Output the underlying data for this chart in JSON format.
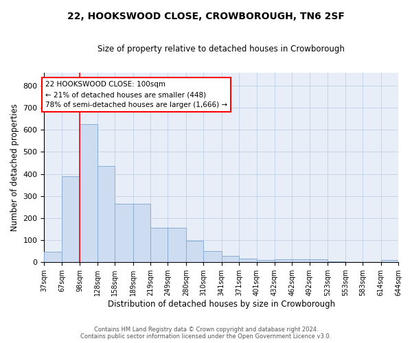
{
  "title": "22, HOOKSWOOD CLOSE, CROWBOROUGH, TN6 2SF",
  "subtitle": "Size of property relative to detached houses in Crowborough",
  "xlabel": "Distribution of detached houses by size in Crowborough",
  "ylabel": "Number of detached properties",
  "bar_edges": [
    37,
    67,
    98,
    128,
    158,
    189,
    219,
    249,
    280,
    310,
    341,
    371,
    401,
    432,
    462,
    492,
    523,
    553,
    583,
    614,
    644
  ],
  "bar_heights": [
    48,
    388,
    627,
    437,
    265,
    265,
    155,
    155,
    97,
    52,
    30,
    17,
    11,
    12,
    12,
    12,
    5,
    0,
    0,
    10,
    0
  ],
  "bar_color": "#cddcf0",
  "bar_edge_color": "#8aadd4",
  "grid_color": "#c0cfe8",
  "background_color": "#e8eef8",
  "property_line_x": 98,
  "property_line_color": "red",
  "annotation_text": "22 HOOKSWOOD CLOSE: 100sqm\n← 21% of detached houses are smaller (448)\n78% of semi-detached houses are larger (1,666) →",
  "annotation_box_color": "white",
  "annotation_box_edge_color": "red",
  "ylim": [
    0,
    860
  ],
  "yticks": [
    0,
    100,
    200,
    300,
    400,
    500,
    600,
    700,
    800
  ],
  "footer_line1": "Contains HM Land Registry data © Crown copyright and database right 2024.",
  "footer_line2": "Contains public sector information licensed under the Open Government Licence v3.0."
}
